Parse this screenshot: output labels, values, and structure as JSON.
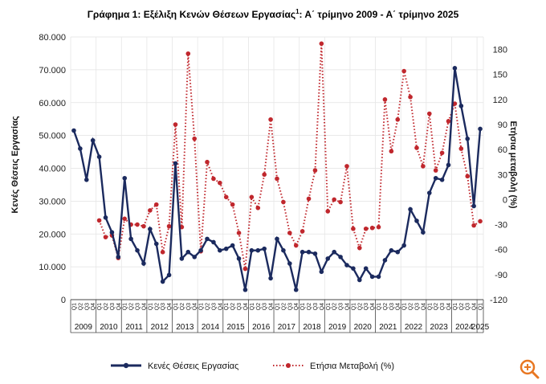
{
  "chart_data": {
    "type": "line",
    "title": "Γράφημα 1: Εξέλιξη Κενών Θέσεων Εργασίας",
    "title_sup": "1",
    "title_rest": ": Α΄ τρίμηνο 2009 - Α΄ τρίμηνο 2025",
    "ylabel_left": "Κενές Θέσεις Εργασίας",
    "ylabel_right": "Ετήσια μεταβολή (%)",
    "y_left_lim": [
      0,
      80000
    ],
    "y_left_ticks": [
      "0",
      "10.000",
      "20.000",
      "30.000",
      "40.000",
      "50.000",
      "60.000",
      "70.000",
      "80.000"
    ],
    "y_right_lim": [
      -120,
      195
    ],
    "y_right_ticks": [
      "-120",
      "-90",
      "-60",
      "-30",
      "0",
      "30",
      "60",
      "90",
      "120",
      "150",
      "180"
    ],
    "quarter_labels": [
      "Q1",
      "Q2",
      "Q3",
      "Q4"
    ],
    "years": [
      "2009",
      "2010",
      "2011",
      "2012",
      "2013",
      "2014",
      "2015",
      "2016",
      "2017",
      "2018",
      "2019",
      "2020",
      "2021",
      "2022",
      "2023",
      "2024",
      "2025"
    ],
    "series": [
      {
        "name": "Κενές Θέσεις Εργασίας",
        "color": "#1b2a5e",
        "style": "solid-markers",
        "values": [
          51500,
          46000,
          36500,
          48500,
          43500,
          25000,
          20500,
          13000,
          37000,
          18500,
          15000,
          11000,
          21500,
          17000,
          5500,
          7500,
          41500,
          12500,
          14500,
          13000,
          15000,
          18500,
          17500,
          15000,
          15500,
          16500,
          12500,
          3000,
          15000,
          15000,
          15500,
          6500,
          18500,
          15000,
          11000,
          3000,
          14500,
          14500,
          14000,
          8500,
          12500,
          14500,
          13000,
          10500,
          9500,
          6000,
          9500,
          7000,
          7000,
          12000,
          15000,
          14500,
          16500,
          27500,
          24000,
          20500,
          32500,
          37000,
          36500,
          41000,
          70500,
          59000,
          49000,
          28500,
          52000
        ]
      },
      {
        "name": "Ετήσια Μεταβολή (%)",
        "color": "#c0272d",
        "style": "dotted-markers",
        "values": [
          null,
          null,
          null,
          null,
          -25,
          -45,
          -43,
          -70,
          -23,
          -30,
          -30,
          -32,
          -13,
          -6,
          -63,
          -32,
          90,
          -33,
          175,
          73,
          -62,
          45,
          25,
          20,
          3,
          -6,
          -40,
          -83,
          3,
          -10,
          30,
          96,
          25,
          -3,
          -40,
          -55,
          -38,
          1,
          35,
          187,
          -14,
          0,
          -3,
          40,
          -35,
          -58,
          -35,
          -34,
          -33,
          120,
          58,
          96,
          154,
          123,
          62,
          40,
          103,
          35,
          56,
          94,
          115,
          61,
          28,
          -31,
          -26
        ]
      }
    ]
  },
  "legend": {
    "series1_label": "Κενές Θέσεις Εργασίας",
    "series2_label": "Ετήσια Μεταβολή (%)"
  },
  "icons": {
    "zoom": "zoom-in-icon",
    "zoom_color": "#e87722"
  }
}
